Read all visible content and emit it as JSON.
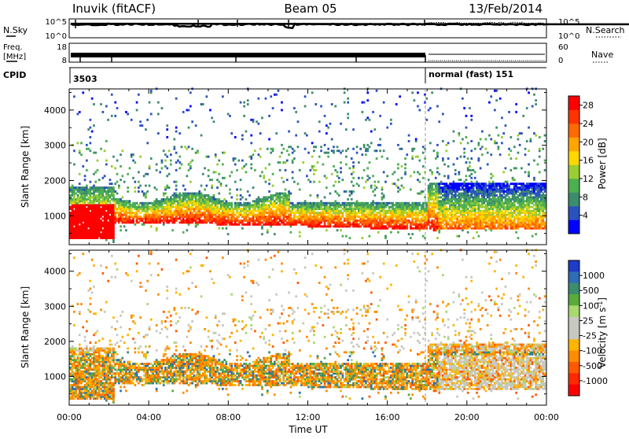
{
  "header": {
    "station": "Inuvik (fitACF)",
    "beam": "Beam 05",
    "date": "13/Feb/2014"
  },
  "strips": {
    "nsky": {
      "label": "N.Sky",
      "ticks": [
        "10^5",
        "10^0"
      ]
    },
    "nsearch": {
      "label": "N.Search",
      "ticks": [
        "10^5",
        "10^0"
      ]
    },
    "freq": {
      "label_line1": "Freq.",
      "label_line2": "[MHz]",
      "ticks": [
        "18",
        "8"
      ]
    },
    "nave": {
      "label": "Nave",
      "ticks": [
        "60",
        "0"
      ]
    },
    "cpid": {
      "label": "CPID",
      "segments": [
        {
          "text": "3503",
          "start_hour": 0
        },
        {
          "text": "normal (fast) 151",
          "start_hour": 18
        }
      ]
    }
  },
  "chart_data": [
    {
      "type": "heatmap",
      "title": "",
      "xlabel": "",
      "ylabel": "Slant Range [km]",
      "x_unit": "hour UT",
      "xlim": [
        0,
        24
      ],
      "ylim": [
        180,
        4600
      ],
      "yticks": [
        "1000",
        "2000",
        "3000",
        "4000"
      ],
      "colorbar": {
        "label": "Power [dB]",
        "ticks": [
          "4",
          "8",
          "12",
          "16",
          "20",
          "24",
          "28"
        ],
        "range": [
          0,
          30
        ],
        "colors": [
          "#0000ff",
          "#2a52be",
          "#3c8c6e",
          "#4caf50",
          "#9acd32",
          "#ffd700",
          "#ffa500",
          "#ff6a00",
          "#ff3300",
          "#ff0000"
        ]
      }
    },
    {
      "type": "heatmap",
      "title": "",
      "xlabel": "Time UT",
      "ylabel": "Slant Range [km]",
      "x_unit": "hour UT",
      "xlim": [
        0,
        24
      ],
      "ylim": [
        180,
        4600
      ],
      "yticks": [
        "1000",
        "2000",
        "3000",
        "4000"
      ],
      "xticks": [
        "00:00",
        "04:00",
        "08:00",
        "12:00",
        "16:00",
        "20:00",
        "00:00"
      ],
      "colorbar": {
        "label": "Velocity",
        "unit_prefix": "[m s",
        "unit_exp": "-1",
        "unit_suffix": "]",
        "ticks": [
          "1000",
          "500",
          "100",
          "25",
          "-25",
          "-100",
          "-500",
          "-1000"
        ],
        "colors": [
          "#1e3cc8",
          "#2d6eb4",
          "#3c8c6e",
          "#5aaa3c",
          "#a8d86e",
          "#c8c8c0",
          "#c8c8c0",
          "#ffb400",
          "#ff8c00",
          "#ff5a00",
          "#ff2800",
          "#ff0000"
        ]
      }
    }
  ]
}
